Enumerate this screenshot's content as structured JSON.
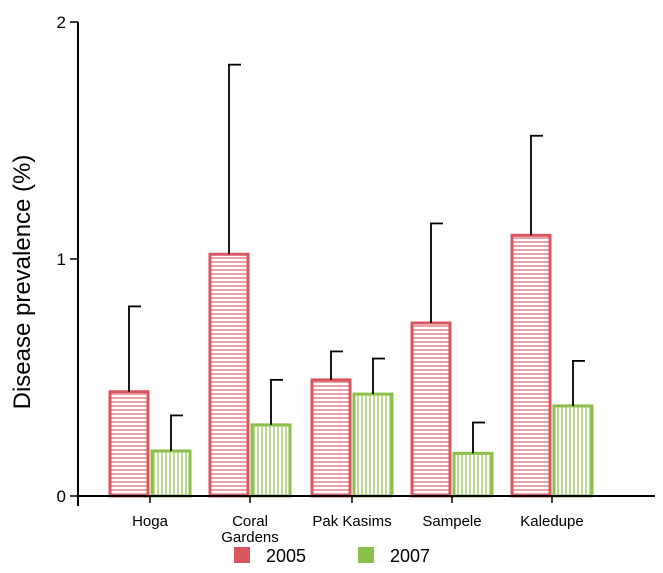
{
  "chart_data": {
    "type": "bar",
    "title": "",
    "xlabel": "",
    "ylabel": "Disease prevalence (%)",
    "ylim": [
      0,
      2
    ],
    "yticks": [
      "0",
      "1",
      "2"
    ],
    "categories": [
      [
        "Hoga"
      ],
      [
        "Coral",
        "Gardens"
      ],
      [
        "Pak Kasims"
      ],
      [
        "Sampele"
      ],
      [
        "Kaledupe"
      ]
    ],
    "series": [
      {
        "name": "2005",
        "color": "#d9555f",
        "fill_pattern": "horizontal-stripes",
        "values": [
          0.44,
          1.02,
          0.49,
          0.73,
          1.1
        ],
        "error": [
          0.36,
          0.8,
          0.12,
          0.42,
          0.42
        ]
      },
      {
        "name": "2007",
        "color": "#8cbf4a",
        "fill_pattern": "vertical-stripes",
        "values": [
          0.19,
          0.3,
          0.43,
          0.18,
          0.38
        ],
        "error": [
          0.15,
          0.19,
          0.15,
          0.13,
          0.19
        ]
      }
    ],
    "grid": false,
    "legend": "bottom"
  }
}
